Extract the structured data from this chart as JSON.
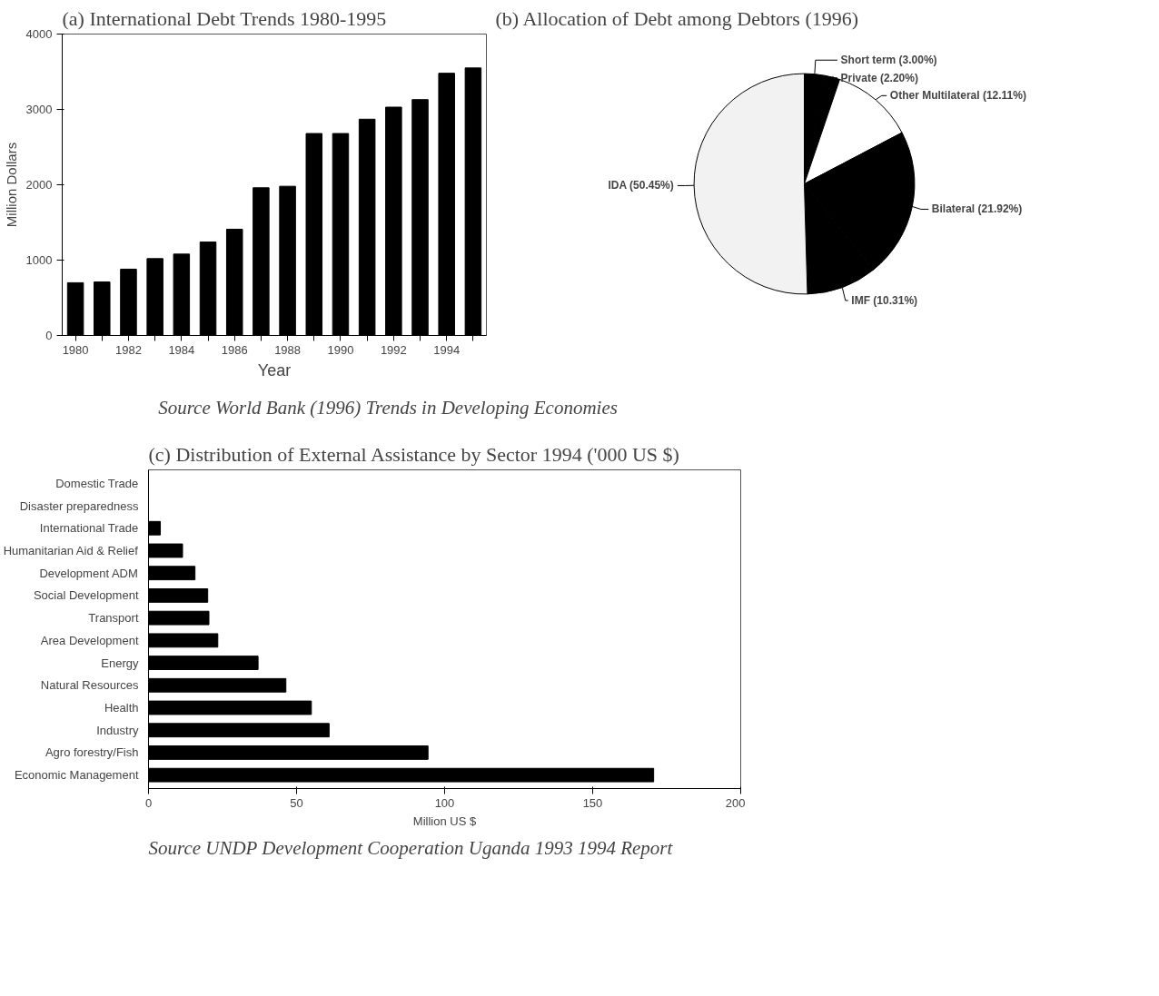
{
  "chart_data": [
    {
      "type": "bar",
      "title": "(a)    International Debt Trends 1980-1995",
      "xlabel": "Year",
      "ylabel": "Million Dollars",
      "color": "#000000",
      "x": [
        1980,
        1981,
        1982,
        1983,
        1984,
        1985,
        1986,
        1987,
        1988,
        1989,
        1990,
        1991,
        1992,
        1993,
        1994,
        1995
      ],
      "values": [
        700,
        710,
        880,
        1020,
        1080,
        1240,
        1410,
        1960,
        1980,
        2680,
        2680,
        2870,
        3030,
        3130,
        3480,
        3550
      ],
      "xlim": [
        1979.5,
        1995.5
      ],
      "xticks": [
        1980,
        {
          "value": 1981,
          "label": null
        },
        1982,
        {
          "value": 1983,
          "label": null
        },
        1984,
        {
          "value": 1985,
          "label": null
        },
        1986,
        {
          "value": 1987,
          "label": null
        },
        1988,
        {
          "value": 1989,
          "label": null
        },
        1990,
        {
          "value": 1991,
          "label": null
        },
        1992,
        {
          "value": 1993,
          "label": null
        },
        1994,
        {
          "value": 1995,
          "label": null
        }
      ],
      "ylim": [
        0,
        4000
      ],
      "yticks": [
        0,
        1000,
        2000,
        3000,
        4000
      ],
      "grid": false,
      "annotations": [
        "Source        World Bank (1996) Trends in Developing Economies"
      ]
    },
    {
      "type": "pie",
      "title": "(b)  Allocation of Debt among Debtors (1996)",
      "categories": [
        "Short term",
        "Private",
        "Other Multilateral",
        "Bilateral",
        "IMF",
        "IDA"
      ],
      "values": [
        3.0,
        2.2,
        12.11,
        21.92,
        10.31,
        50.45
      ],
      "value_labels": [
        "(3.00%)",
        "(2.20%)",
        "(12.11%)",
        "(21.92%)",
        "(10.31%)",
        "(50.45%)"
      ],
      "colors": [
        "#000000",
        "#000000",
        "#ffffff",
        "#000000",
        "#000000",
        "#f2f2f2"
      ]
    },
    {
      "type": "bar",
      "orientation": "horizontal",
      "title": "(c) Distribution of External Assistance by Sector 1994 ('000 US $)",
      "xlabel": "Million US $",
      "color": "#000000",
      "categories": [
        "Domestic Trade",
        "Disaster preparedness",
        "International Trade",
        "Humanitarian Aid & Relief",
        "Development ADM",
        "Social Development",
        "Transport",
        "Area Development",
        "Energy",
        "Natural Resources",
        "Health",
        "Industry",
        "Agro forestry/Fish",
        "Economic Management"
      ],
      "values": [
        0,
        0,
        4,
        11.5,
        15.7,
        20,
        20.4,
        23.4,
        37,
        46.4,
        55,
        61,
        94.4,
        170.6
      ],
      "xlim": [
        0,
        200
      ],
      "xticks": [
        0,
        50,
        100,
        150,
        200
      ],
      "grid": false,
      "annotations": [
        "Source UNDP  Development Cooperation  Uganda  1993  1994 Report"
      ]
    }
  ]
}
